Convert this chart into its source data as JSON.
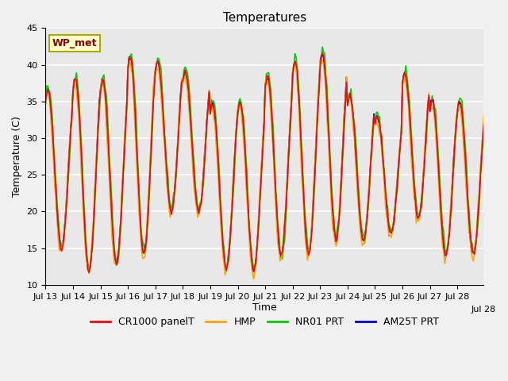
{
  "title": "Temperatures",
  "xlabel": "Time",
  "ylabel": "Temperature (C)",
  "ylim": [
    10,
    45
  ],
  "plot_bg_color": "#e8e8e8",
  "fig_bg_color": "#f0f0f0",
  "grid_color": "#ffffff",
  "colors": {
    "CR1000_panelT": "#ff0000",
    "HMP": "#ffa500",
    "NR01_PRT": "#00cc00",
    "AM25T_PRT": "#0000dd"
  },
  "legend_labels": [
    "CR1000 panelT",
    "HMP",
    "NR01 PRT",
    "AM25T PRT"
  ],
  "station_label": "WP_met",
  "xtick_labels": [
    "Jul 13",
    "Jul 14",
    "Jul 15",
    "Jul 16",
    "Jul 17",
    "Jul 18",
    "Jul 19",
    "Jul 20",
    "Jul 21",
    "Jul 22",
    "Jul 23",
    "Jul 24",
    "Jul 25",
    "Jul 26",
    "Jul 27",
    "Jul 28"
  ],
  "n_days": 16,
  "hours_per_day": 24,
  "day_peaks": [
    36.5,
    38.3,
    38.0,
    41.2,
    40.5,
    39.0,
    34.8,
    35.0,
    38.5,
    40.5,
    41.5,
    35.8,
    33.0,
    38.7,
    35.2,
    35.0
  ],
  "day_mins": [
    15.0,
    12.0,
    13.0,
    14.2,
    20.0,
    20.0,
    12.2,
    12.0,
    14.0,
    14.2,
    16.2,
    16.0,
    17.0,
    19.0,
    14.0,
    14.0
  ],
  "title_fontsize": 11,
  "axis_label_fontsize": 9,
  "tick_fontsize": 8,
  "legend_fontsize": 9,
  "linewidth": 1.2,
  "yticks": [
    10,
    15,
    20,
    25,
    30,
    35,
    40,
    45
  ]
}
